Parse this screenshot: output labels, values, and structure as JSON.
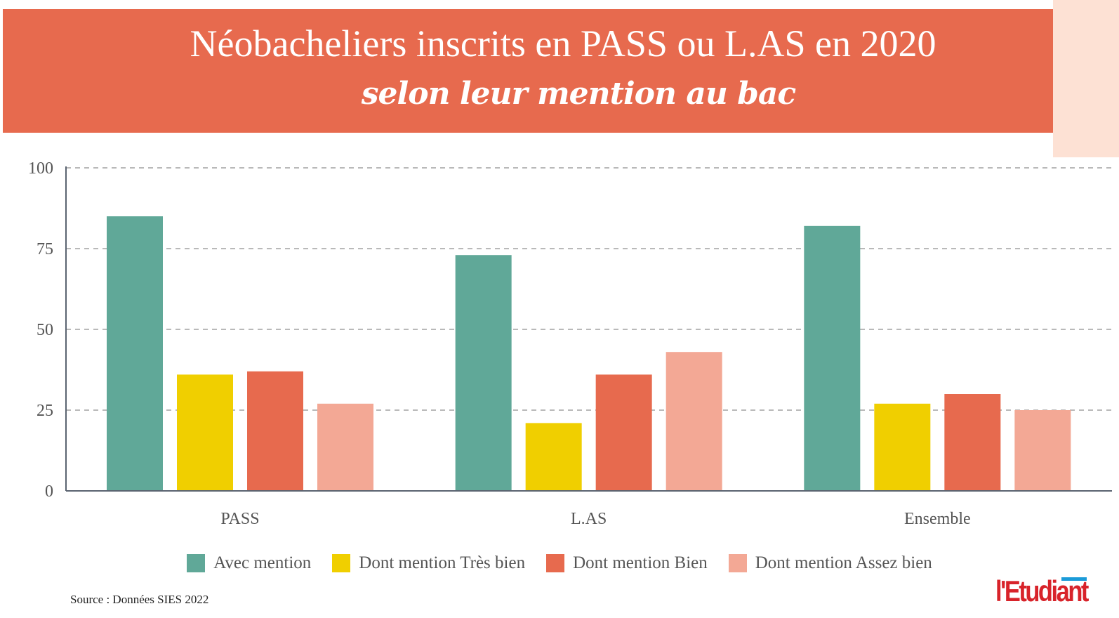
{
  "header": {
    "title": "Néobacheliers inscrits en PASS ou L.AS en 2020",
    "subtitle": "selon leur mention au bac"
  },
  "colors": {
    "header_band": "#e76a4e",
    "side_accent": "#fde1d4",
    "avec_mention": "#60a898",
    "tres_bien": "#f0cf00",
    "bien": "#e76a4e",
    "assez_bien": "#f3a895"
  },
  "chart_data": {
    "type": "bar",
    "categories": [
      "PASS",
      "L.AS",
      "Ensemble"
    ],
    "series": [
      {
        "name": "Avec mention",
        "values": [
          85,
          73,
          82
        ]
      },
      {
        "name": "Dont mention Très bien",
        "values": [
          36,
          21,
          27
        ]
      },
      {
        "name": "Dont mention Bien",
        "values": [
          37,
          36,
          30
        ]
      },
      {
        "name": "Dont mention Assez bien",
        "values": [
          27,
          43,
          25
        ]
      }
    ],
    "ylim": [
      0,
      100
    ],
    "yticks": [
      0,
      25,
      50,
      75,
      100
    ],
    "grid": true,
    "legend": "bottom"
  },
  "source": "Source : Données SIES 2022",
  "logo": {
    "text": "l'Etudiant"
  }
}
